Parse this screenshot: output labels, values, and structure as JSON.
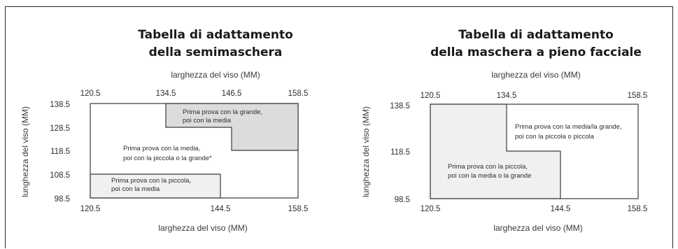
{
  "colors": {
    "shaded": "#dcdcdc",
    "light": "#f0f0f0",
    "white": "#ffffff",
    "stroke": "#3a3a3a"
  },
  "left": {
    "title_lines": [
      "Tabella di adattamento",
      "della semimaschera"
    ],
    "x_axis_label": "larghezza del viso (MM)",
    "y_axis_label": "lunghezza del viso (MM)",
    "top_ticks": [
      "120.5",
      "134.5",
      "146.5",
      "158.5"
    ],
    "bottom_ticks": [
      "120.5",
      "144.5",
      "158.5"
    ],
    "y_ticks": [
      "138.5",
      "128.5",
      "118.5",
      "108.5",
      "98.5"
    ],
    "x_range": [
      120.5,
      158.5
    ],
    "y_range": [
      98.5,
      138.5
    ],
    "regions": [
      {
        "name": "media",
        "fill": "white",
        "lines": [
          "Prima prova con la media,",
          "poi con la piccola o la grande*"
        ]
      },
      {
        "name": "grande",
        "fill": "shaded",
        "lines": [
          "Prima prova con la grande,",
          "poi con la media"
        ],
        "polygon": [
          [
            134.5,
            138.5
          ],
          [
            158.5,
            138.5
          ],
          [
            158.5,
            118.5
          ],
          [
            146.5,
            118.5
          ],
          [
            146.5,
            128.5
          ],
          [
            134.5,
            128.5
          ]
        ]
      },
      {
        "name": "piccola",
        "fill": "light",
        "lines": [
          "Prima prova con la piccola,",
          "poi con la media"
        ],
        "polygon": [
          [
            120.5,
            108.5
          ],
          [
            144.5,
            108.5
          ],
          [
            144.5,
            98.5
          ],
          [
            120.5,
            98.5
          ]
        ]
      }
    ]
  },
  "right": {
    "title_lines": [
      "Tabella di adattamento",
      "della maschera a pieno facciale"
    ],
    "x_axis_label": "larghezza del viso (MM)",
    "y_axis_label": "lunghezza del viso (MM)",
    "top_ticks": [
      "120.5",
      "134.5",
      "158.5"
    ],
    "bottom_ticks": [
      "120.5",
      "144.5",
      "158.5"
    ],
    "y_ticks": [
      "138.5",
      "118.5",
      "98.5"
    ],
    "x_range": [
      120.5,
      158.5
    ],
    "y_range": [
      98.5,
      138.5
    ],
    "regions": [
      {
        "name": "media-grande",
        "fill": "white",
        "lines": [
          "Prima prova con la media/la grande,",
          "poi con la piccola o piccola"
        ]
      },
      {
        "name": "piccola",
        "fill": "light",
        "lines": [
          "Prima prova con la piccola,",
          "poi con la media o la grande"
        ],
        "polygon": [
          [
            120.5,
            138.5
          ],
          [
            134.5,
            138.5
          ],
          [
            134.5,
            118.5
          ],
          [
            144.5,
            118.5
          ],
          [
            144.5,
            98.5
          ],
          [
            120.5,
            98.5
          ]
        ]
      }
    ]
  }
}
